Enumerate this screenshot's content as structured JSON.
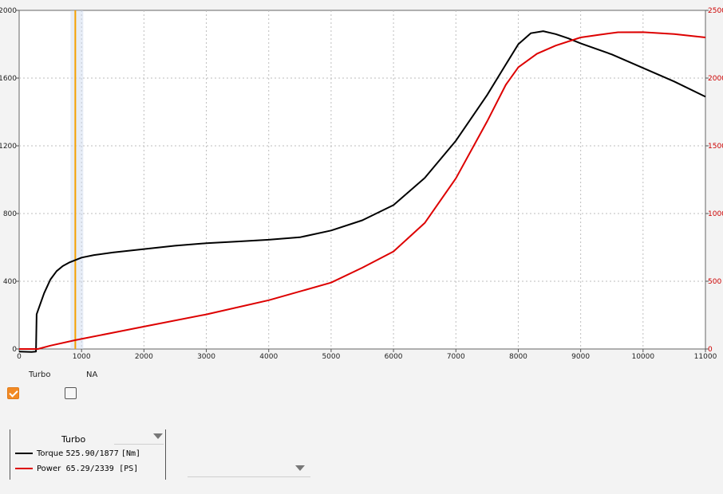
{
  "chart_data": {
    "type": "line",
    "x_ticks": [
      "0",
      "1000",
      "2000",
      "3000",
      "4000",
      "5000",
      "6000",
      "7000",
      "8000",
      "9000",
      "10000",
      "11000"
    ],
    "y_left_ticks": [
      "0",
      "400",
      "800",
      "1200",
      "1600",
      "2000"
    ],
    "y_right_ticks": [
      "0",
      "500",
      "1000",
      "1500",
      "2000",
      "2500"
    ],
    "xlim": [
      0,
      11000
    ],
    "ylim_left": [
      0,
      2000
    ],
    "ylim_right": [
      0,
      2500
    ],
    "grid": true,
    "marker_rpm": 900,
    "series": [
      {
        "name": "Torque",
        "axis": "left",
        "color": "#000000",
        "points": [
          [
            0,
            -15
          ],
          [
            200,
            -18
          ],
          [
            270,
            -15
          ],
          [
            280,
            205
          ],
          [
            400,
            330
          ],
          [
            500,
            410
          ],
          [
            600,
            460
          ],
          [
            700,
            490
          ],
          [
            800,
            510
          ],
          [
            900,
            525
          ],
          [
            1000,
            540
          ],
          [
            1200,
            555
          ],
          [
            1500,
            570
          ],
          [
            2000,
            590
          ],
          [
            2500,
            610
          ],
          [
            3000,
            625
          ],
          [
            3500,
            635
          ],
          [
            4000,
            645
          ],
          [
            4500,
            660
          ],
          [
            5000,
            700
          ],
          [
            5500,
            760
          ],
          [
            6000,
            850
          ],
          [
            6500,
            1010
          ],
          [
            7000,
            1230
          ],
          [
            7500,
            1500
          ],
          [
            7800,
            1680
          ],
          [
            8000,
            1800
          ],
          [
            8200,
            1865
          ],
          [
            8400,
            1877
          ],
          [
            8600,
            1860
          ],
          [
            8800,
            1835
          ],
          [
            9000,
            1805
          ],
          [
            9500,
            1740
          ],
          [
            10000,
            1660
          ],
          [
            10500,
            1580
          ],
          [
            11000,
            1490
          ]
        ]
      },
      {
        "name": "Power",
        "axis": "right",
        "color": "#dd0000",
        "points": [
          [
            0,
            0
          ],
          [
            300,
            0
          ],
          [
            500,
            25
          ],
          [
            900,
            65
          ],
          [
            1500,
            120
          ],
          [
            2000,
            165
          ],
          [
            3000,
            255
          ],
          [
            4000,
            360
          ],
          [
            5000,
            490
          ],
          [
            5500,
            600
          ],
          [
            6000,
            720
          ],
          [
            6500,
            930
          ],
          [
            7000,
            1260
          ],
          [
            7500,
            1680
          ],
          [
            7800,
            1950
          ],
          [
            8000,
            2080
          ],
          [
            8300,
            2180
          ],
          [
            8600,
            2240
          ],
          [
            9000,
            2300
          ],
          [
            9300,
            2320
          ],
          [
            9600,
            2338
          ],
          [
            10000,
            2339
          ],
          [
            10500,
            2325
          ],
          [
            11000,
            2300
          ]
        ]
      }
    ]
  },
  "modes": {
    "turbo": {
      "label": "Turbo",
      "checked": true
    },
    "na": {
      "label": "NA",
      "checked": false
    }
  },
  "legend": {
    "title": "Turbo",
    "rows": [
      {
        "name": "Torque",
        "value": "525.90/1877",
        "unit": "[Nm]",
        "color": "#000000"
      },
      {
        "name": "Power",
        "value": "65.29/2339",
        "unit": "[PS]",
        "color": "#dd0000"
      }
    ]
  }
}
